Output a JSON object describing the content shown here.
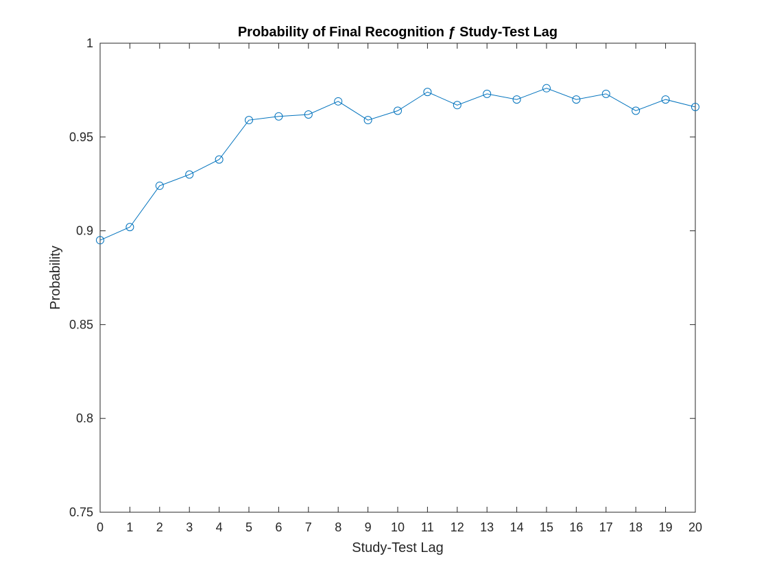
{
  "chart_data": {
    "type": "line",
    "title": "Probability of Final Recognition ƒ Study-Test Lag",
    "xlabel": "Study-Test Lag",
    "ylabel": "Probability",
    "xlim": [
      0,
      20
    ],
    "ylim": [
      0.75,
      1
    ],
    "x_ticks": [
      0,
      1,
      2,
      3,
      4,
      5,
      6,
      7,
      8,
      9,
      10,
      11,
      12,
      13,
      14,
      15,
      16,
      17,
      18,
      19,
      20
    ],
    "y_ticks": [
      0.75,
      0.8,
      0.85,
      0.9,
      0.95,
      1
    ],
    "y_tick_labels": [
      "0.75",
      "0.8",
      "0.85",
      "0.9",
      "0.95",
      "1"
    ],
    "grid": false,
    "legend": "none",
    "marker": "circle",
    "line_color": "#0072BD",
    "series": [
      {
        "x": [
          0,
          1,
          2,
          3,
          4,
          5,
          6,
          7,
          8,
          9,
          10,
          11,
          12,
          13,
          14,
          15,
          16,
          17,
          18,
          19,
          20
        ],
        "values": [
          0.895,
          0.902,
          0.924,
          0.93,
          0.938,
          0.959,
          0.961,
          0.962,
          0.969,
          0.959,
          0.964,
          0.974,
          0.967,
          0.973,
          0.97,
          0.976,
          0.97,
          0.973,
          0.964,
          0.97,
          0.966
        ]
      }
    ]
  }
}
